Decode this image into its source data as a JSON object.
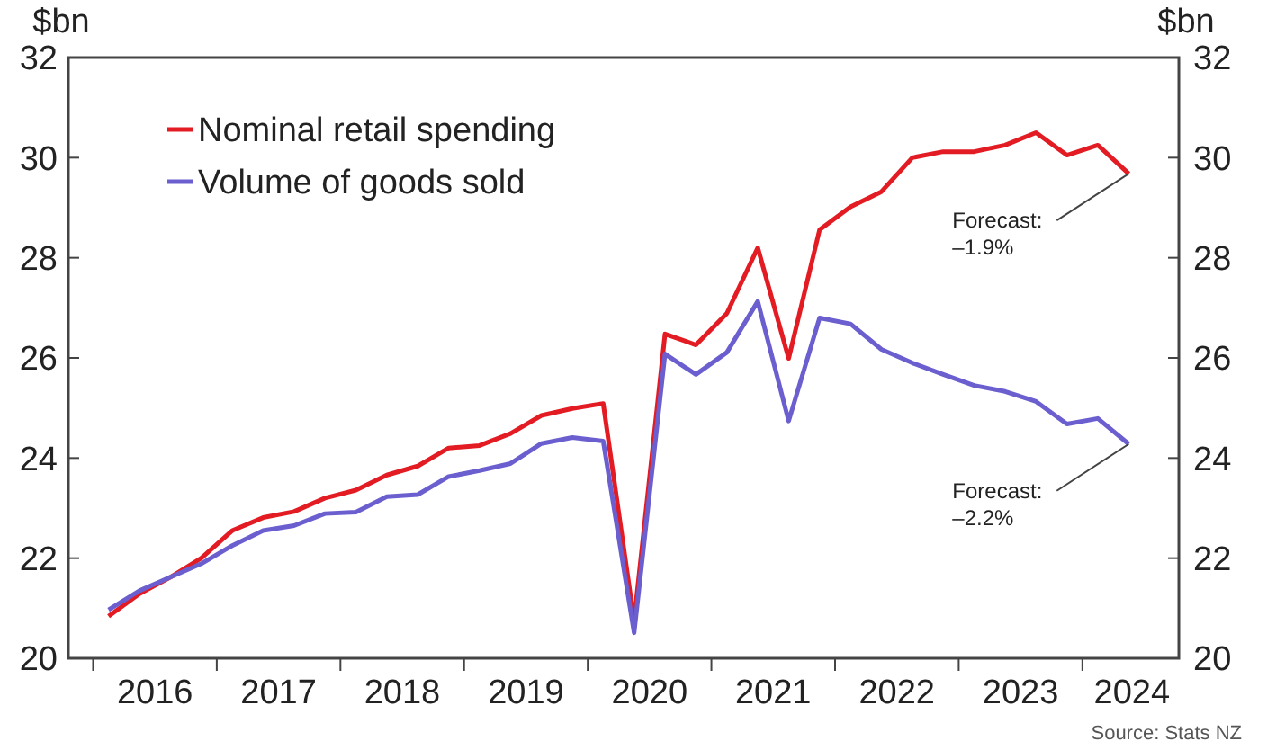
{
  "chart_data": {
    "type": "line",
    "ylabel": "$bn",
    "y2label": "$bn",
    "x": [
      2016.125,
      2016.375,
      2016.625,
      2016.875,
      2017.125,
      2017.375,
      2017.625,
      2017.875,
      2018.125,
      2018.375,
      2018.625,
      2018.875,
      2019.125,
      2019.375,
      2019.625,
      2019.875,
      2020.125,
      2020.375,
      2020.625,
      2020.875,
      2021.125,
      2021.375,
      2021.625,
      2021.875,
      2022.125,
      2022.375,
      2022.625,
      2022.875,
      2023.125,
      2023.375,
      2023.625,
      2023.875,
      2024.125,
      2024.375
    ],
    "series": [
      {
        "name": "Nominal retail spending",
        "color": "#e31b23",
        "values": [
          20.84,
          21.29,
          21.62,
          22.0,
          22.55,
          22.81,
          22.93,
          23.2,
          23.36,
          23.66,
          23.84,
          24.2,
          24.25,
          24.49,
          24.85,
          24.99,
          25.09,
          20.75,
          26.48,
          26.26,
          26.89,
          28.2,
          25.99,
          28.56,
          29.02,
          29.32,
          30.0,
          30.12,
          30.12,
          30.25,
          30.5,
          30.05,
          30.25,
          29.68
        ]
      },
      {
        "name": "Volume of goods sold",
        "color": "#6b5fcf",
        "values": [
          20.97,
          21.35,
          21.62,
          21.89,
          22.25,
          22.55,
          22.65,
          22.89,
          22.92,
          23.23,
          23.27,
          23.63,
          23.75,
          23.89,
          24.29,
          24.41,
          24.34,
          20.51,
          26.08,
          25.67,
          26.11,
          27.13,
          24.74,
          26.8,
          26.68,
          26.17,
          25.9,
          25.67,
          25.45,
          25.33,
          25.13,
          24.68,
          24.79,
          24.28
        ]
      }
    ],
    "xlim": [
      2015.8,
      2024.78
    ],
    "xticks": [
      {
        "value": 2016,
        "label": null
      },
      {
        "value": 2016.5,
        "label": "2016"
      },
      {
        "value": 2017,
        "label": null
      },
      {
        "value": 2017.5,
        "label": "2017"
      },
      {
        "value": 2018,
        "label": null
      },
      {
        "value": 2018.5,
        "label": "2018"
      },
      {
        "value": 2019,
        "label": null
      },
      {
        "value": 2019.5,
        "label": "2019"
      },
      {
        "value": 2020,
        "label": null
      },
      {
        "value": 2020.5,
        "label": "2020"
      },
      {
        "value": 2021,
        "label": null
      },
      {
        "value": 2021.5,
        "label": "2021"
      },
      {
        "value": 2022,
        "label": null
      },
      {
        "value": 2022.5,
        "label": "2022"
      },
      {
        "value": 2023,
        "label": null
      },
      {
        "value": 2023.5,
        "label": "2023"
      },
      {
        "value": 2024,
        "label": null
      },
      {
        "value": 2024.4,
        "label": "2024"
      }
    ],
    "ylim": [
      20,
      32
    ],
    "yticks": [
      20,
      22,
      24,
      26,
      28,
      30,
      32
    ],
    "y2lim": [
      20,
      32
    ],
    "y2ticks": [
      20,
      22,
      24,
      26,
      28,
      30,
      32
    ],
    "legend": "top left",
    "grid": false,
    "line_style": "solid",
    "marker": "none",
    "annotations": [
      {
        "text": "Forecast:\n–1.9%",
        "x": 2024.375,
        "y": 29.68
      },
      {
        "text": "Forecast:\n–2.2%",
        "x": 2024.375,
        "y": 24.28
      },
      "Source: Stats NZ"
    ]
  }
}
